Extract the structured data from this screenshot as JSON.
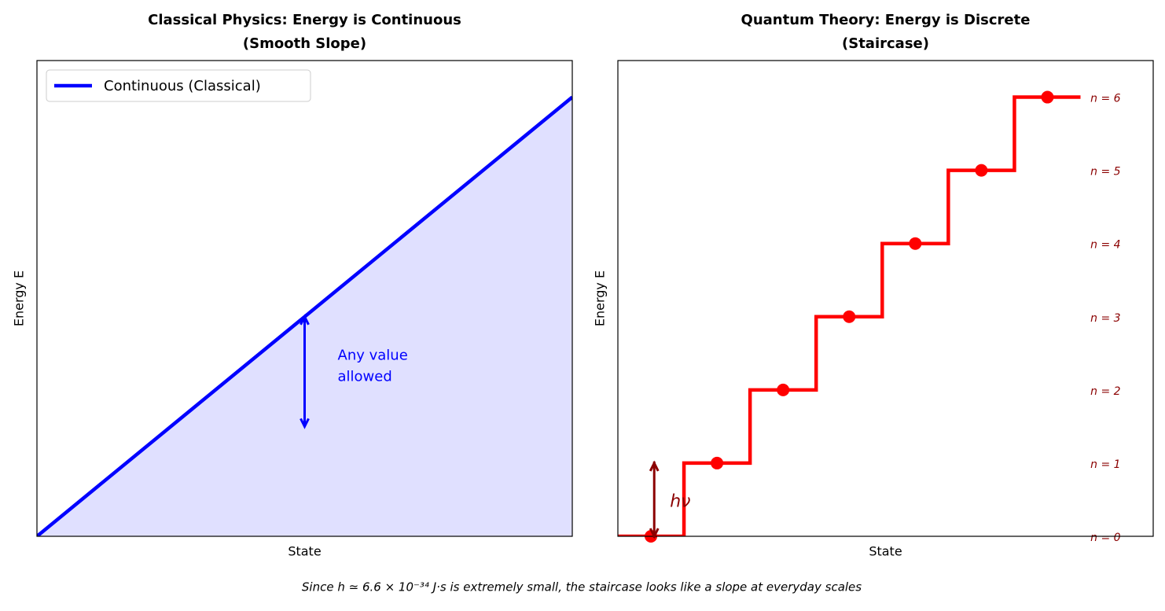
{
  "chart_data": [
    {
      "type": "line",
      "title": "Classical Physics: Energy is Continuous",
      "subtitle": "(Smooth Slope)",
      "xlabel": "State",
      "ylabel": "Energy E",
      "xlim": [
        0,
        10
      ],
      "ylim": [
        0,
        6.5
      ],
      "series": [
        {
          "name": "Continuous (Classical)",
          "color": "#0000ff",
          "fill": "#e0e0ff",
          "x": [
            0,
            10
          ],
          "values": [
            0,
            6
          ]
        }
      ],
      "legend": "upper left",
      "annotation": {
        "text": [
          "Any value",
          "allowed"
        ],
        "color": "#0000ff",
        "x": 5,
        "values": [
          3,
          1.5
        ]
      }
    },
    {
      "type": "step",
      "title": "Quantum Theory: Energy is Discrete",
      "subtitle": "(Staircase)",
      "xlabel": "State",
      "ylabel": "Energy E",
      "xlim": [
        0,
        8.1
      ],
      "ylim": [
        0,
        6.5
      ],
      "series": [
        {
          "color": "#ff0000",
          "x": [
            0,
            1,
            2,
            3,
            4,
            5,
            6,
            7
          ],
          "values": [
            0,
            1,
            2,
            3,
            4,
            5,
            6,
            6
          ]
        }
      ],
      "points": {
        "color": "#ff0000",
        "x": [
          0.5,
          1.5,
          2.5,
          3.5,
          4.5,
          5.5,
          6.5
        ],
        "values": [
          0,
          1,
          2,
          3,
          4,
          5,
          6
        ]
      },
      "level_labels": {
        "color": "#8b0000",
        "labels": [
          "n = 0",
          "n = 1",
          "n = 2",
          "n = 3",
          "n = 4",
          "n = 5",
          "n = 6"
        ],
        "values": [
          0,
          1,
          2,
          3,
          4,
          5,
          6
        ]
      },
      "annotation": {
        "text": [
          "hν"
        ],
        "color": "#8b0000",
        "x": 0.55,
        "values": [
          0,
          1
        ]
      }
    }
  ],
  "caption": "Since h ≃ 6.6 × 10⁻³⁴ J·s is extremely small, the staircase looks like a slope at everyday scales"
}
